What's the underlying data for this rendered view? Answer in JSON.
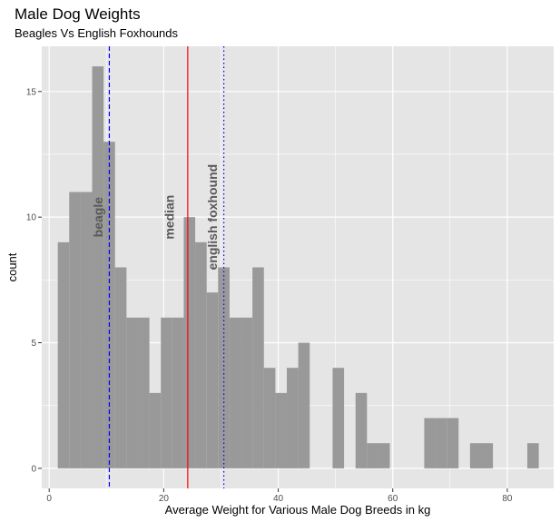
{
  "chart_data": {
    "type": "bar",
    "title": "Male Dog Weights",
    "subtitle": "Beagles Vs English Foxhounds",
    "xlabel": "Average Weight for Various Male Dog Breeds in kg",
    "ylabel": "count",
    "xlim": [
      -1.3,
      88.1
    ],
    "ylim": [
      -0.8,
      16.8
    ],
    "x_ticks": [
      0,
      20,
      40,
      60,
      80
    ],
    "y_ticks": [
      0,
      5,
      10,
      15
    ],
    "grid": true,
    "legend": "none",
    "bin_width": 2,
    "bins": [
      {
        "x": 2.5,
        "count": 9
      },
      {
        "x": 4.5,
        "count": 11
      },
      {
        "x": 6.5,
        "count": 11
      },
      {
        "x": 8.5,
        "count": 16
      },
      {
        "x": 10.5,
        "count": 13
      },
      {
        "x": 12.5,
        "count": 8
      },
      {
        "x": 14.5,
        "count": 6
      },
      {
        "x": 16.5,
        "count": 6
      },
      {
        "x": 18.5,
        "count": 3
      },
      {
        "x": 20.5,
        "count": 6
      },
      {
        "x": 22.5,
        "count": 6
      },
      {
        "x": 24.5,
        "count": 10
      },
      {
        "x": 26.5,
        "count": 9
      },
      {
        "x": 28.5,
        "count": 7
      },
      {
        "x": 30.5,
        "count": 8
      },
      {
        "x": 32.5,
        "count": 6
      },
      {
        "x": 34.5,
        "count": 6
      },
      {
        "x": 36.5,
        "count": 8
      },
      {
        "x": 38.5,
        "count": 4
      },
      {
        "x": 40.5,
        "count": 3
      },
      {
        "x": 42.5,
        "count": 4
      },
      {
        "x": 44.5,
        "count": 5
      },
      {
        "x": 50.5,
        "count": 4
      },
      {
        "x": 54.5,
        "count": 3
      },
      {
        "x": 56.5,
        "count": 1
      },
      {
        "x": 58.5,
        "count": 1
      },
      {
        "x": 66.5,
        "count": 2
      },
      {
        "x": 68.5,
        "count": 2
      },
      {
        "x": 70.5,
        "count": 2
      },
      {
        "x": 74.5,
        "count": 1
      },
      {
        "x": 76.5,
        "count": 1
      },
      {
        "x": 84.5,
        "count": 1
      }
    ],
    "bar_color": "#999999",
    "panel_background": "#e5e5e5",
    "grid_color": "#ffffff",
    "vlines": [
      {
        "label": "beagle",
        "x": 10.5,
        "color": "#0000ff",
        "style": "dashed"
      },
      {
        "label": "median",
        "x": 24.2,
        "color": "#ff0000",
        "style": "solid"
      },
      {
        "label": "english foxhound",
        "x": 30.5,
        "color": "#0000ff",
        "style": "dotted"
      }
    ],
    "annotations": [
      {
        "text": "beagle",
        "x": 8.5,
        "y": 10
      },
      {
        "text": "median",
        "x": 21.0,
        "y": 10
      },
      {
        "text": "english foxhound",
        "x": 28.5,
        "y": 10
      }
    ]
  }
}
